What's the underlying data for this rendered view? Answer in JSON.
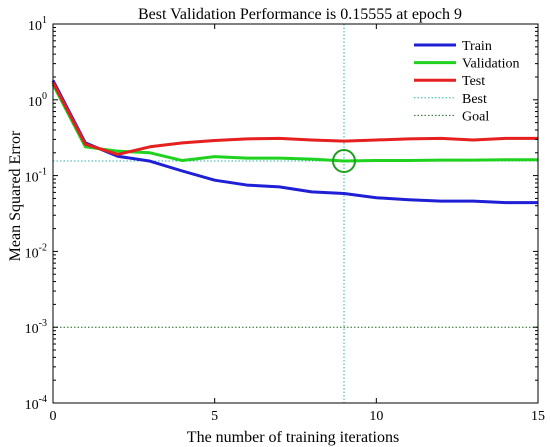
{
  "chart_data": {
    "type": "line",
    "title": "Best Validation Performance is 0.15555 at epoch 9",
    "xlabel": "The number of training iterations",
    "ylabel": "Mean Squared Error",
    "xlim": [
      0,
      15
    ],
    "ylim": [
      0.0001,
      10
    ],
    "yscale": "log",
    "grid": false,
    "legend_position": "top-right",
    "x_ticks": [
      0,
      5,
      10,
      15
    ],
    "y_ticks": [
      {
        "value": 0.0001,
        "base": "10",
        "exp": "-4"
      },
      {
        "value": 0.001,
        "base": "10",
        "exp": "-3"
      },
      {
        "value": 0.01,
        "base": "10",
        "exp": "-2"
      },
      {
        "value": 0.1,
        "base": "10",
        "exp": "-1"
      },
      {
        "value": 1,
        "base": "10",
        "exp": "0"
      },
      {
        "value": 10,
        "base": "10",
        "exp": "1"
      }
    ],
    "series": [
      {
        "name": "Train",
        "color": "#1f1fd6",
        "style": "solid",
        "x": [
          0,
          1,
          2,
          3,
          4,
          5,
          6,
          7,
          8,
          9,
          10,
          11,
          12,
          13,
          14,
          15
        ],
        "y": [
          1.8,
          0.27,
          0.18,
          0.155,
          0.115,
          0.087,
          0.075,
          0.071,
          0.061,
          0.058,
          0.051,
          0.048,
          0.046,
          0.046,
          0.044,
          0.044
        ]
      },
      {
        "name": "Validation",
        "color": "#1fd21f",
        "style": "solid",
        "x": [
          0,
          1,
          2,
          3,
          4,
          5,
          6,
          7,
          8,
          9,
          10,
          11,
          12,
          13,
          14,
          15
        ],
        "y": [
          1.6,
          0.24,
          0.21,
          0.2,
          0.158,
          0.178,
          0.17,
          0.17,
          0.165,
          0.156,
          0.158,
          0.158,
          0.16,
          0.16,
          0.162,
          0.162
        ]
      },
      {
        "name": "Test",
        "color": "#e61f1f",
        "style": "solid",
        "x": [
          0,
          1,
          2,
          3,
          4,
          5,
          6,
          7,
          8,
          9,
          10,
          11,
          12,
          13,
          14,
          15
        ],
        "y": [
          1.7,
          0.26,
          0.19,
          0.24,
          0.27,
          0.29,
          0.305,
          0.31,
          0.295,
          0.285,
          0.295,
          0.305,
          0.31,
          0.295,
          0.31,
          0.31
        ]
      }
    ],
    "reference_lines": [
      {
        "name": "Best",
        "color": "#2ab0b0",
        "style": "dotted",
        "x": 9,
        "y": 0.15555
      },
      {
        "name": "Goal",
        "color": "#1f6e1f",
        "style": "dotted",
        "y": 0.001
      }
    ],
    "best_marker": {
      "x": 9,
      "y": 0.15555,
      "color": "#1f9e1f"
    }
  }
}
